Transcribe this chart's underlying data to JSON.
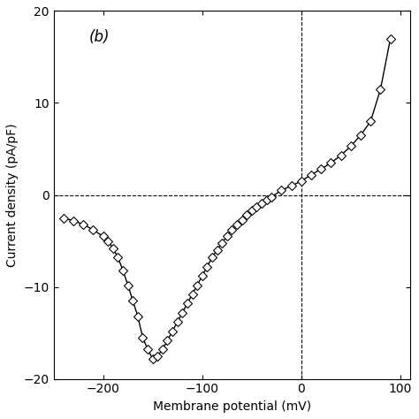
{
  "x": [
    -240,
    -230,
    -220,
    -210,
    -200,
    -195,
    -190,
    -185,
    -180,
    -175,
    -170,
    -165,
    -160,
    -155,
    -150,
    -145,
    -140,
    -135,
    -130,
    -125,
    -120,
    -115,
    -110,
    -105,
    -100,
    -95,
    -90,
    -85,
    -80,
    -75,
    -70,
    -65,
    -60,
    -55,
    -50,
    -45,
    -40,
    -35,
    -30,
    -20,
    -10,
    0,
    10,
    20,
    30,
    40,
    50,
    60,
    70,
    80,
    90
  ],
  "y": [
    -2.5,
    -2.8,
    -3.2,
    -3.8,
    -4.5,
    -5.0,
    -5.8,
    -6.8,
    -8.2,
    -9.8,
    -11.5,
    -13.2,
    -15.5,
    -16.8,
    -17.8,
    -17.5,
    -16.8,
    -15.8,
    -14.8,
    -13.8,
    -12.8,
    -11.8,
    -10.8,
    -9.8,
    -8.8,
    -7.8,
    -6.8,
    -6.0,
    -5.2,
    -4.5,
    -3.8,
    -3.2,
    -2.7,
    -2.2,
    -1.7,
    -1.3,
    -0.9,
    -0.5,
    -0.2,
    0.5,
    1.0,
    1.5,
    2.2,
    2.8,
    3.5,
    4.3,
    5.3,
    6.5,
    8.0,
    11.5,
    17.0
  ],
  "xlim": [
    -250,
    110
  ],
  "ylim": [
    -20,
    20
  ],
  "xticks": [
    -200,
    -100,
    0,
    100
  ],
  "yticks": [
    -20,
    -10,
    0,
    10,
    20
  ],
  "xlabel": "Membrane potential (mV)",
  "ylabel": "Current density (pA/pF)",
  "panel_label": "(b)",
  "dashed_x": 0,
  "dashed_y": 0,
  "marker": "D",
  "markersize": 5,
  "linewidth": 1.0,
  "color": "black",
  "background_color": "#ffffff",
  "figsize": [
    4.74,
    4.74
  ],
  "dpi": 100
}
